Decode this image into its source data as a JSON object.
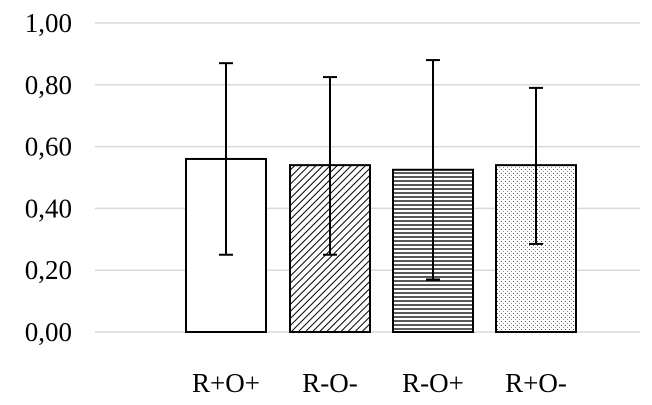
{
  "chart_data": {
    "type": "bar",
    "categories": [
      "R+O+",
      "R-O-",
      "R-O+",
      "R+O-"
    ],
    "values": [
      0.56,
      0.54,
      0.525,
      0.54
    ],
    "error_upper": [
      0.87,
      0.825,
      0.88,
      0.79
    ],
    "error_lower": [
      0.25,
      0.25,
      0.17,
      0.285
    ],
    "ylim": [
      0,
      1.0
    ],
    "y_ticks": [
      0.0,
      0.2,
      0.4,
      0.6,
      0.8,
      1.0
    ],
    "y_tick_labels": [
      "0,00",
      "0,20",
      "0,40",
      "0,60",
      "0,80",
      "1,00"
    ],
    "bar_fills": [
      "solid-white",
      "diagonal-hatch",
      "horizontal-hatch",
      "dotted"
    ],
    "grid": true,
    "title": "",
    "xlabel": "",
    "ylabel": "",
    "colors": {
      "axis_grid": "#d9d9d9",
      "bar_edge": "#000000",
      "bar_fill": "#ffffff"
    }
  }
}
